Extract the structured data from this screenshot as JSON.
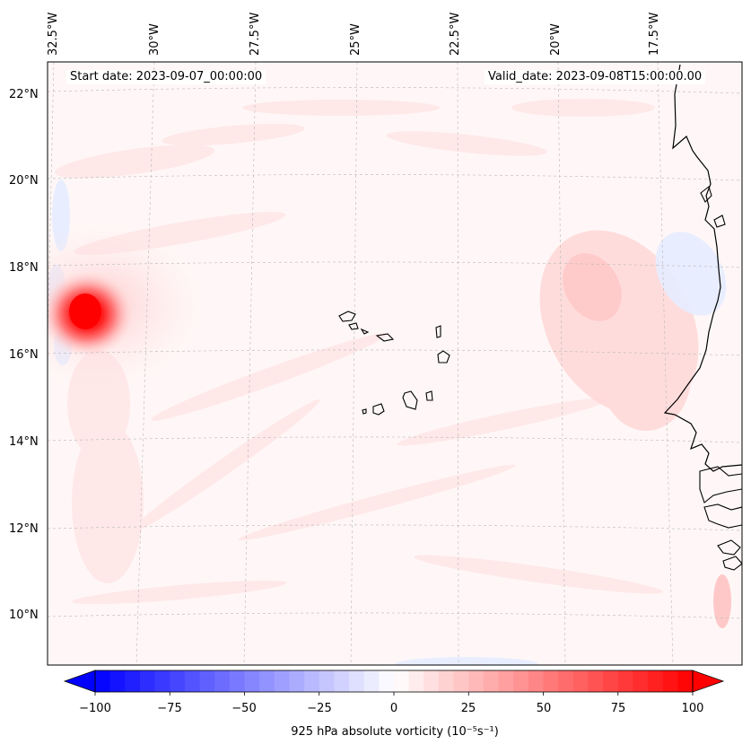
{
  "map": {
    "start_label": "Start date: 2023-09-07_00:00:00",
    "valid_label": "Valid_date: 2023-09-08T15:00:00.00",
    "lon_labels": [
      "32.5°W",
      "30°W",
      "27.5°W",
      "25°W",
      "22.5°W",
      "20°W",
      "17.5°W"
    ],
    "lat_labels": [
      "22°N",
      "20°N",
      "18°N",
      "16°N",
      "14°N",
      "12°N",
      "10°N"
    ]
  },
  "colorbar": {
    "label": "925 hPa absolute vorticity (10⁻⁵s⁻¹)",
    "ticks": [
      "−100",
      "−75",
      "−50",
      "−25",
      "0",
      "25",
      "50",
      "75",
      "100"
    ],
    "min": -100,
    "max": 100,
    "neg_color": "#0000ff",
    "pos_color": "#ff0000",
    "zero_color": "#ffffff"
  }
}
